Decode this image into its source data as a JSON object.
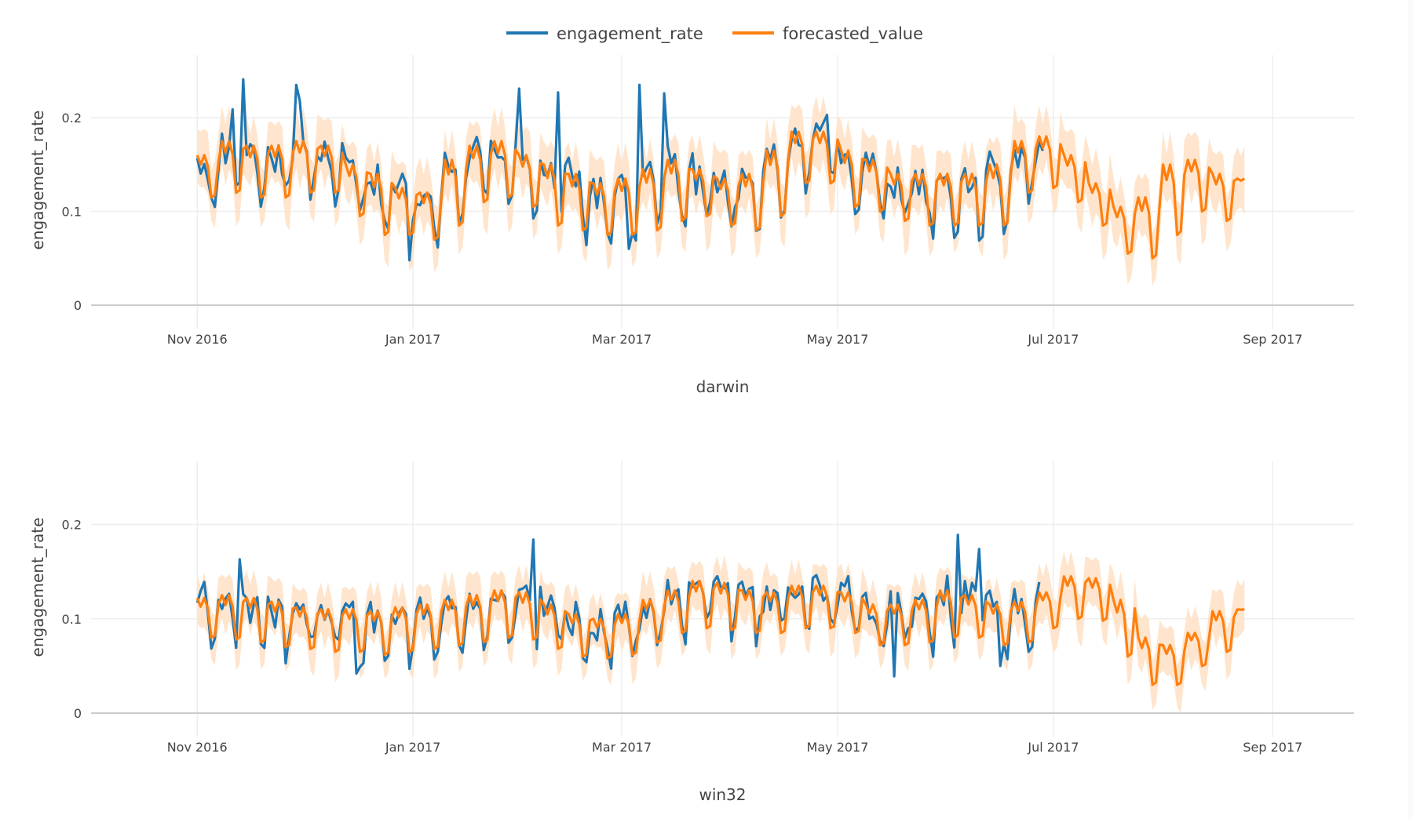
{
  "legend": {
    "items": [
      {
        "label": "engagement_rate",
        "color": "#1f77b4"
      },
      {
        "label": "forecasted_value",
        "color": "#ff7f0e"
      }
    ]
  },
  "colors": {
    "actual": "#1f77b4",
    "forecast": "#ff7f0e",
    "band": "#ffe2c8",
    "grid": "#eeeeee",
    "zeroline": "#cccccc"
  },
  "chart_data": [
    {
      "type": "line",
      "title": "darwin",
      "xlabel": "darwin",
      "ylabel": "engagement_rate",
      "x_start": "2016-11-01",
      "x_range": [
        "2016-10-02",
        "2017-09-24"
      ],
      "ylim": [
        0,
        0.267
      ],
      "grid": true,
      "legend": "top-center",
      "x_ticks": [
        {
          "date": "2016-11-01",
          "label": "Nov 2016"
        },
        {
          "date": "2017-01-01",
          "label": "Jan 2017"
        },
        {
          "date": "2017-03-01",
          "label": "Mar 2017"
        },
        {
          "date": "2017-05-01",
          "label": "May 2017"
        },
        {
          "date": "2017-07-01",
          "label": "Jul 2017"
        },
        {
          "date": "2017-09-01",
          "label": "Sep 2017"
        }
      ],
      "y_ticks": [
        {
          "value": 0,
          "label": "0"
        },
        {
          "value": 0.1,
          "label": "0.1"
        },
        {
          "value": 0.2,
          "label": "0.2"
        }
      ],
      "weekly_forecast_peak": [
        0.16,
        0.175,
        0.17,
        0.17,
        0.175,
        0.17,
        0.15,
        0.14,
        0.125,
        0.12,
        0.155,
        0.17,
        0.175,
        0.16,
        0.15,
        0.14,
        0.13,
        0.135,
        0.145,
        0.155,
        0.145,
        0.135,
        0.14,
        0.165,
        0.185,
        0.185,
        0.165,
        0.155,
        0.14,
        0.14,
        0.14,
        0.14,
        0.15,
        0.175,
        0.18,
        0.16,
        0.13,
        0.105,
        0.115,
        0.15,
        0.155,
        0.14,
        0.135
      ],
      "weekly_forecast_trough": [
        0.115,
        0.12,
        0.115,
        0.115,
        0.12,
        0.12,
        0.095,
        0.075,
        0.075,
        0.07,
        0.085,
        0.11,
        0.115,
        0.105,
        0.085,
        0.08,
        0.075,
        0.075,
        0.08,
        0.09,
        0.095,
        0.085,
        0.08,
        0.095,
        0.13,
        0.13,
        0.105,
        0.1,
        0.09,
        0.085,
        0.085,
        0.085,
        0.085,
        0.12,
        0.125,
        0.11,
        0.085,
        0.055,
        0.05,
        0.075,
        0.1,
        0.09,
        0.125
      ],
      "band_halfwidth": 0.03,
      "actual_days": 240,
      "forecast_days": 297,
      "actual_spikes": [
        {
          "day": 10,
          "value": 0.209
        },
        {
          "day": 13,
          "value": 0.241
        },
        {
          "day": 28,
          "value": 0.235
        },
        {
          "day": 29,
          "value": 0.218
        },
        {
          "day": 91,
          "value": 0.231
        },
        {
          "day": 102,
          "value": 0.227
        },
        {
          "day": 125,
          "value": 0.235
        },
        {
          "day": 132,
          "value": 0.226
        },
        {
          "day": 178,
          "value": 0.203
        }
      ],
      "actual_dips": [
        {
          "day": 60,
          "value": 0.048
        },
        {
          "day": 122,
          "value": 0.06
        },
        {
          "day": 110,
          "value": 0.064
        }
      ]
    },
    {
      "type": "line",
      "title": "win32",
      "xlabel": "win32",
      "ylabel": "engagement_rate",
      "x_start": "2016-11-01",
      "x_range": [
        "2016-10-02",
        "2017-09-24"
      ],
      "ylim": [
        0,
        0.267
      ],
      "grid": true,
      "legend": "top-center",
      "x_ticks": [
        {
          "date": "2016-11-01",
          "label": "Nov 2016"
        },
        {
          "date": "2017-01-01",
          "label": "Jan 2017"
        },
        {
          "date": "2017-03-01",
          "label": "Mar 2017"
        },
        {
          "date": "2017-05-01",
          "label": "May 2017"
        },
        {
          "date": "2017-07-01",
          "label": "Jul 2017"
        },
        {
          "date": "2017-09-01",
          "label": "Sep 2017"
        }
      ],
      "y_ticks": [
        {
          "value": 0,
          "label": "0"
        },
        {
          "value": 0.1,
          "label": "0.1"
        },
        {
          "value": 0.2,
          "label": "0.2"
        }
      ],
      "weekly_forecast_peak": [
        0.122,
        0.125,
        0.122,
        0.118,
        0.112,
        0.11,
        0.11,
        0.108,
        0.112,
        0.115,
        0.12,
        0.125,
        0.13,
        0.128,
        0.115,
        0.105,
        0.1,
        0.105,
        0.12,
        0.13,
        0.14,
        0.138,
        0.13,
        0.128,
        0.135,
        0.135,
        0.128,
        0.115,
        0.115,
        0.12,
        0.13,
        0.125,
        0.115,
        0.118,
        0.128,
        0.145,
        0.143,
        0.12,
        0.08,
        0.072,
        0.085,
        0.108,
        0.11
      ],
      "weekly_forecast_trough": [
        0.08,
        0.078,
        0.075,
        0.07,
        0.068,
        0.065,
        0.065,
        0.062,
        0.065,
        0.068,
        0.072,
        0.075,
        0.08,
        0.078,
        0.068,
        0.06,
        0.058,
        0.062,
        0.075,
        0.085,
        0.09,
        0.088,
        0.085,
        0.085,
        0.09,
        0.09,
        0.085,
        0.072,
        0.072,
        0.075,
        0.08,
        0.08,
        0.072,
        0.075,
        0.09,
        0.1,
        0.098,
        0.06,
        0.03,
        0.03,
        0.05,
        0.065,
        0.108
      ],
      "band_halfwidth": 0.025,
      "actual_days": 239,
      "forecast_days": 297,
      "actual_spikes": [
        {
          "day": 12,
          "value": 0.163
        },
        {
          "day": 95,
          "value": 0.184
        },
        {
          "day": 215,
          "value": 0.189
        },
        {
          "day": 221,
          "value": 0.174
        }
      ],
      "actual_dips": [
        {
          "day": 45,
          "value": 0.042
        },
        {
          "day": 60,
          "value": 0.047
        },
        {
          "day": 197,
          "value": 0.039
        },
        {
          "day": 227,
          "value": 0.05
        }
      ]
    }
  ]
}
